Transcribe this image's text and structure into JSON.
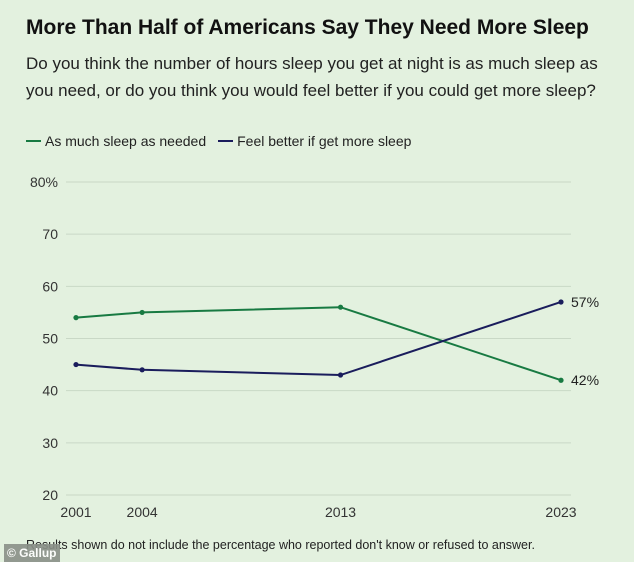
{
  "title": "More Than Half of Americans Say They Need More Sleep",
  "subtitle": "Do you think the number of hours sleep you get at night is as much sleep as you need, or do you think you would feel better if you could get more sleep?",
  "footnote": "Results shown do not include the percentage who reported don't know or refused to answer.",
  "credit": "© Gallup",
  "chart_data": {
    "type": "line",
    "title": "More Than Half of Americans Say They Need More Sleep",
    "x": [
      2001,
      2004,
      2013,
      2023
    ],
    "x_tick_labels": [
      "2001",
      "2004",
      "2013",
      "2023"
    ],
    "y_tick_labels": [
      "80%",
      "70",
      "60",
      "50",
      "40",
      "30",
      "20"
    ],
    "y_ticks": [
      80,
      70,
      60,
      50,
      40,
      30,
      20
    ],
    "ylim": [
      20,
      80
    ],
    "grid": true,
    "legend_position": "top-left",
    "series": [
      {
        "name": "As much sleep as needed",
        "values": [
          54,
          55,
          56,
          42
        ],
        "color": "#187a42",
        "end_label": "42%"
      },
      {
        "name": "Feel better if get more sleep",
        "values": [
          45,
          44,
          43,
          57
        ],
        "color": "#1a1d5c",
        "end_label": "57%"
      }
    ]
  }
}
